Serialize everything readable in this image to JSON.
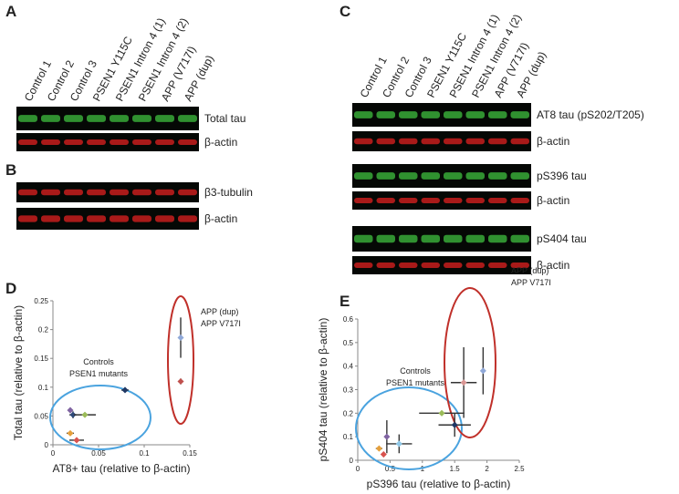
{
  "panels": {
    "A": {
      "letter": "A",
      "lanes": [
        "Control 1",
        "Control 2",
        "Control 3",
        "PSEN1 Y115C",
        "PSEN1 Intron 4 (1)",
        "PSEN1 Intron 4 (2)",
        "APP (V717I)",
        "APP (dup)"
      ],
      "bands": [
        "Total tau",
        "β-actin"
      ]
    },
    "B": {
      "letter": "B",
      "bands": [
        "β3-tubulin",
        "β-actin"
      ]
    },
    "C": {
      "letter": "C",
      "lanes": [
        "Control 1",
        "Control 2",
        "Control 3",
        "PSEN1 Y115C",
        "PSEN1 Intron 4 (1)",
        "PSEN1 Intron 4 (2)",
        "APP (V717I)",
        "APP (dup)"
      ],
      "bands": [
        "AT8 tau (pS202/T205)",
        "β-actin",
        "pS396 tau",
        "β-actin",
        "pS404 tau",
        "β-actin"
      ]
    }
  },
  "chart_data": [
    {
      "type": "scatter",
      "letter": "D",
      "xlabel": "AT8+ tau (relative to β-actin)",
      "ylabel": "Total tau (relative to β-actin)",
      "xlim": [
        0,
        0.15
      ],
      "xticks": [
        0,
        0.05,
        0.1,
        0.15
      ],
      "ylim": [
        0,
        0.25
      ],
      "yticks": [
        0,
        0.05,
        0.1,
        0.15,
        0.2,
        0.25
      ],
      "annotations": [
        "APP (dup)",
        "APP V717I",
        "Controls",
        "PSEN1 mutants"
      ],
      "x": [
        0.14,
        0.14,
        0.079,
        0.019,
        0.022,
        0.035,
        0.019,
        0.026
      ],
      "values": [
        0.186,
        0.11,
        0.095,
        0.06,
        0.052,
        0.052,
        0.02,
        0.008
      ],
      "xerr": [
        0.001,
        0.001,
        0.004,
        0.001,
        0.004,
        0.012,
        0.004,
        0.008
      ],
      "yerr": [
        0.035,
        0.005,
        0.003,
        0.004,
        0.006,
        0.003,
        0.004,
        0.003
      ],
      "colors": [
        "#8fa8d8",
        "#c0504d",
        "#1f3864",
        "#8064a2",
        "#2e4a7a",
        "#9bbb59",
        "#e5a03c",
        "#d9534f"
      ]
    },
    {
      "type": "scatter",
      "letter": "E",
      "xlabel": "pS396 tau (relative to β-actin)",
      "ylabel": "pS404 tau (relative to β-actin)",
      "xlim": [
        0,
        2.5
      ],
      "xticks": [
        0,
        0.5,
        1,
        1.5,
        2,
        2.5
      ],
      "ylim": [
        0,
        0.6
      ],
      "yticks": [
        0,
        0.1,
        0.2,
        0.3,
        0.4,
        0.5,
        0.6
      ],
      "annotations": [
        "APP (dup)",
        "APP V717I",
        "Controls",
        "PSEN1 mutants"
      ],
      "x": [
        1.94,
        1.64,
        1.3,
        1.5,
        0.64,
        0.45,
        0.33,
        0.4
      ],
      "values": [
        0.38,
        0.33,
        0.2,
        0.15,
        0.07,
        0.1,
        0.05,
        0.025
      ],
      "xerr": [
        0.02,
        0.2,
        0.35,
        0.25,
        0.2,
        0.03,
        0.05,
        0.02
      ],
      "yerr": [
        0.1,
        0.15,
        0.01,
        0.05,
        0.04,
        0.07,
        0.01,
        0.01
      ],
      "colors": [
        "#8fa8d8",
        "#d99694",
        "#9bbb59",
        "#1f3864",
        "#8fc8e8",
        "#8064a2",
        "#e5a03c",
        "#d9534f"
      ]
    }
  ]
}
